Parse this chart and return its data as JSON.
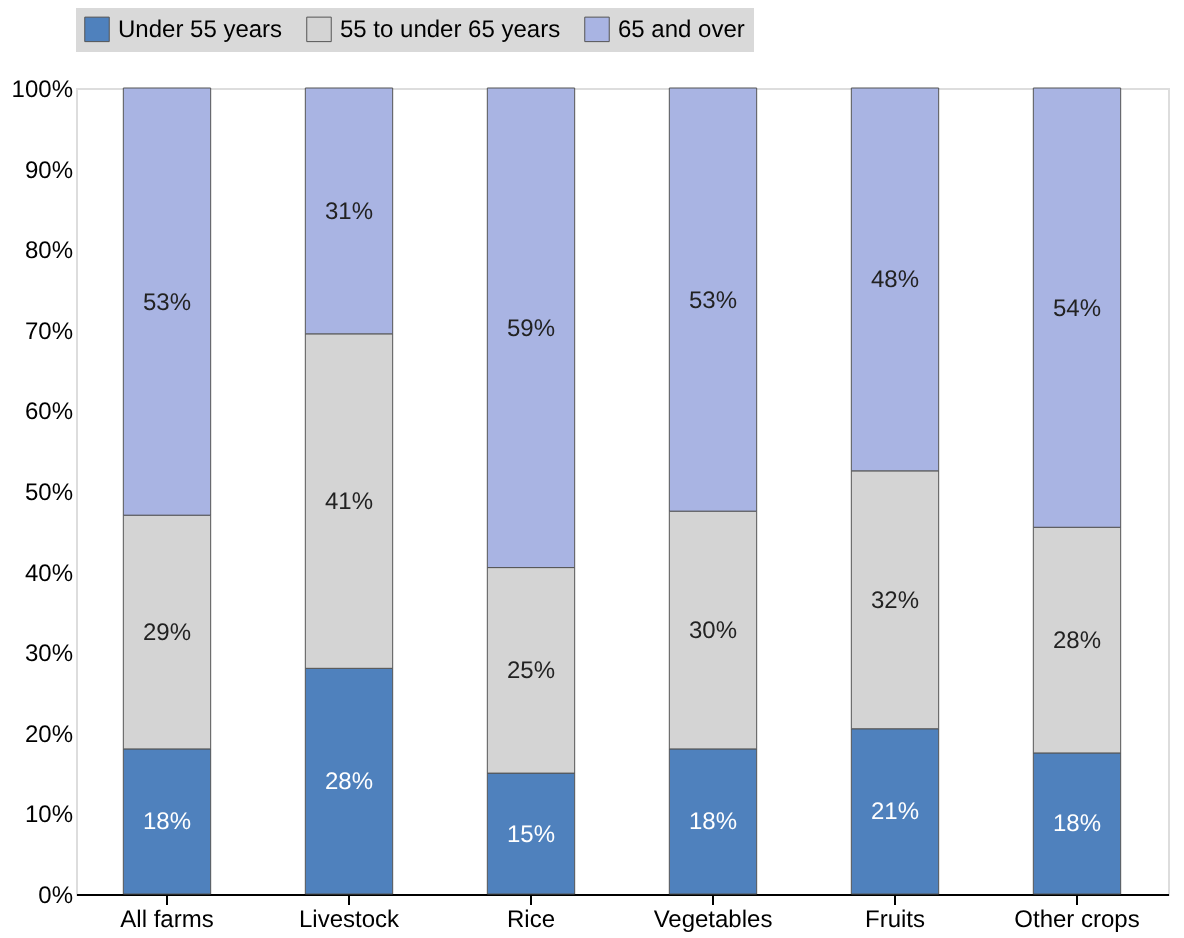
{
  "chart_data": {
    "type": "bar",
    "stacked": true,
    "legend": "top",
    "grid": false,
    "categories": [
      "All farms",
      "Livestock",
      "Rice",
      "Vegetables",
      "Fruits",
      "Other crops"
    ],
    "series": [
      {
        "name": "Under 55 years",
        "color": "#4f81bd",
        "values": [
          18,
          28,
          15,
          18,
          20.5,
          17.5
        ],
        "value_labels": [
          "18%",
          "28%",
          "15%",
          "18%",
          "21%",
          "18%"
        ]
      },
      {
        "name": "55 to under 65 years",
        "color": "#d4d4d4",
        "values": [
          29,
          41.5,
          25.5,
          29.5,
          32,
          28
        ],
        "value_labels": [
          "29%",
          "41%",
          "25%",
          "30%",
          "32%",
          "28%"
        ]
      },
      {
        "name": "65 and over",
        "color": "#a9b4e3",
        "values": [
          53,
          30.5,
          59.5,
          52.5,
          47.5,
          54.5
        ],
        "value_labels": [
          "53%",
          "31%",
          "59%",
          "53%",
          "48%",
          "54%"
        ]
      }
    ],
    "ylim": [
      0,
      100
    ],
    "yticks": [
      {
        "value": 0,
        "label": "0%"
      },
      {
        "value": 10,
        "label": "10%"
      },
      {
        "value": 20,
        "label": "20%"
      },
      {
        "value": 30,
        "label": "30%"
      },
      {
        "value": 40,
        "label": "40%"
      },
      {
        "value": 50,
        "label": "50%"
      },
      {
        "value": 60,
        "label": "60%"
      },
      {
        "value": 70,
        "label": "70%"
      },
      {
        "value": 80,
        "label": "80%"
      },
      {
        "value": 90,
        "label": "90%"
      },
      {
        "value": 100,
        "label": "100%"
      }
    ]
  }
}
